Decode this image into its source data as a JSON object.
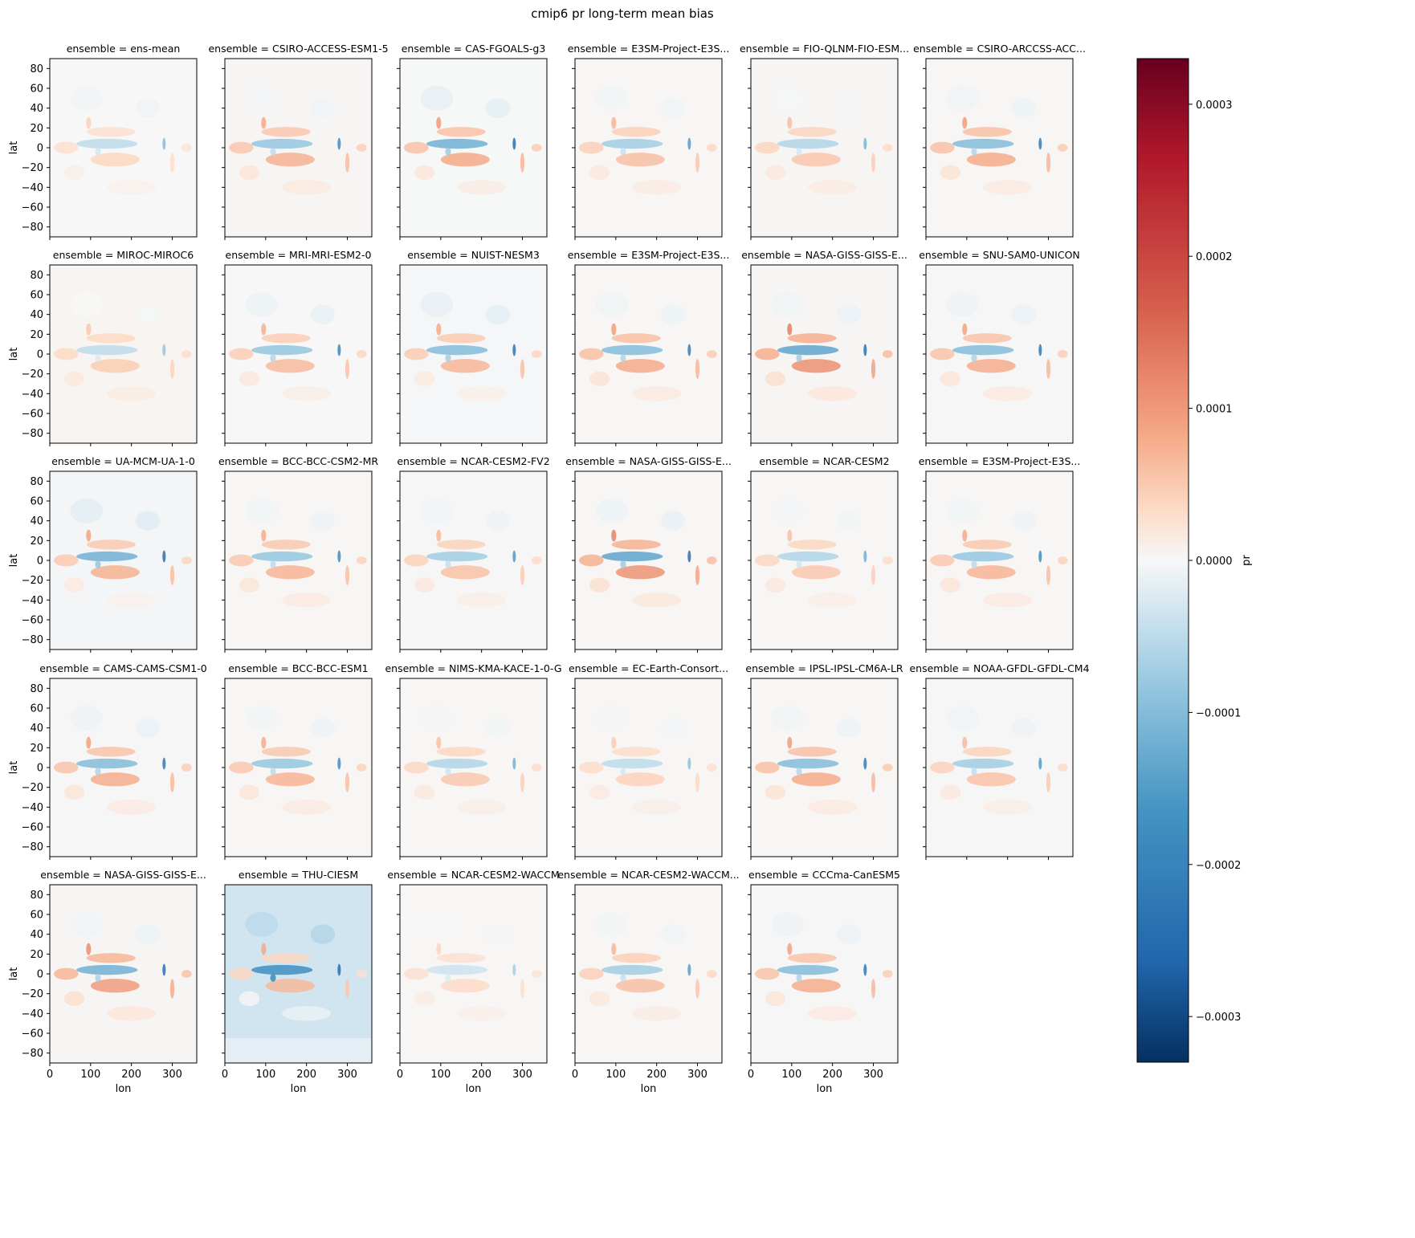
{
  "chart_data": {
    "type": "heatmap",
    "title": "cmip6 pr long-term mean bias",
    "xlabel": "lon",
    "ylabel": "lat",
    "xlim": [
      0,
      360
    ],
    "ylim": [
      -90,
      90
    ],
    "x_ticks": [
      0,
      100,
      200,
      300
    ],
    "y_ticks": [
      80,
      60,
      40,
      20,
      0,
      -20,
      -40,
      -60,
      -80
    ],
    "grid": false,
    "facet_rows": 5,
    "facet_cols": 6,
    "colormap": "RdBu_r",
    "colorbar": {
      "label": "pr",
      "vmin": -0.00033,
      "vmax": 0.00033,
      "ticks": [
        0.0003,
        0.0002,
        0.0001,
        0.0,
        -0.0001,
        -0.0002,
        -0.0003
      ],
      "tick_labels": [
        "0.0003",
        "0.0002",
        "0.0001",
        "0.0000",
        "−0.0001",
        "−0.0002",
        "−0.0003"
      ],
      "colors": {
        "low": "#053061",
        "mid": "#f7f7f7",
        "high": "#67001f"
      }
    },
    "panels": [
      {
        "title": "ensemble = ens-mean",
        "intensity": 0.6,
        "bias": 0.0
      },
      {
        "title": "ensemble = CSIRO-ACCESS-ESM1-5",
        "intensity": 0.9,
        "bias": 0.15
      },
      {
        "title": "ensemble = CAS-FGOALS-g3",
        "intensity": 1.1,
        "bias": -0.05
      },
      {
        "title": "ensemble = E3SM-Project-E3S...",
        "intensity": 0.8,
        "bias": 0.1
      },
      {
        "title": "ensemble = FIO-QLNM-FIO-ESM...",
        "intensity": 0.7,
        "bias": 0.15
      },
      {
        "title": "ensemble = CSIRO-ARCCSS-ACC...",
        "intensity": 1.0,
        "bias": 0.1
      },
      {
        "title": "ensemble = MIROC-MIROC6",
        "intensity": 0.6,
        "bias": 0.2
      },
      {
        "title": "ensemble = MRI-MRI-ESM2-0",
        "intensity": 0.9,
        "bias": 0.0
      },
      {
        "title": "ensemble = NUIST-NESM3",
        "intensity": 1.0,
        "bias": -0.1
      },
      {
        "title": "ensemble = E3SM-Project-E3S...",
        "intensity": 1.0,
        "bias": 0.1
      },
      {
        "title": "ensemble = NASA-GISS-GISS-E...",
        "intensity": 1.2,
        "bias": 0.15
      },
      {
        "title": "ensemble = SNU-SAM0-UNICON",
        "intensity": 1.0,
        "bias": 0.05
      },
      {
        "title": "ensemble = UA-MCM-UA-1-0",
        "intensity": 1.1,
        "bias": -0.2
      },
      {
        "title": "ensemble = BCC-BCC-CSM2-MR",
        "intensity": 0.9,
        "bias": 0.1
      },
      {
        "title": "ensemble = NCAR-CESM2-FV2",
        "intensity": 0.8,
        "bias": 0.05
      },
      {
        "title": "ensemble = NASA-GISS-GISS-E...",
        "intensity": 1.2,
        "bias": 0.1
      },
      {
        "title": "ensemble = NCAR-CESM2",
        "intensity": 0.7,
        "bias": 0.1
      },
      {
        "title": "ensemble = E3SM-Project-E3S...",
        "intensity": 0.9,
        "bias": 0.1
      },
      {
        "title": "ensemble = CAMS-CAMS-CSM1-0",
        "intensity": 1.0,
        "bias": 0.05
      },
      {
        "title": "ensemble = BCC-BCC-ESM1",
        "intensity": 0.9,
        "bias": 0.1
      },
      {
        "title": "ensemble = NIMS-KMA-KACE-1-0-G",
        "intensity": 0.7,
        "bias": 0.1
      },
      {
        "title": "ensemble = EC-Earth-Consort...",
        "intensity": 0.6,
        "bias": 0.1
      },
      {
        "title": "ensemble = IPSL-IPSL-CM6A-LR",
        "intensity": 1.0,
        "bias": 0.1
      },
      {
        "title": "ensemble = NOAA-GFDL-GFDL-CM4",
        "intensity": 0.8,
        "bias": 0.05
      },
      {
        "title": "ensemble = NASA-GISS-GISS-E...",
        "intensity": 1.1,
        "bias": 0.15
      },
      {
        "title": "ensemble = THU-CIESM",
        "intensity": 1.4,
        "bias": -0.9
      },
      {
        "title": "ensemble = NCAR-CESM2-WACCM",
        "intensity": 0.5,
        "bias": 0.1
      },
      {
        "title": "ensemble = NCAR-CESM2-WACCM...",
        "intensity": 0.8,
        "bias": 0.1
      },
      {
        "title": "ensemble = CCCma-CanESM5",
        "intensity": 1.0,
        "bias": 0.05
      }
    ]
  }
}
